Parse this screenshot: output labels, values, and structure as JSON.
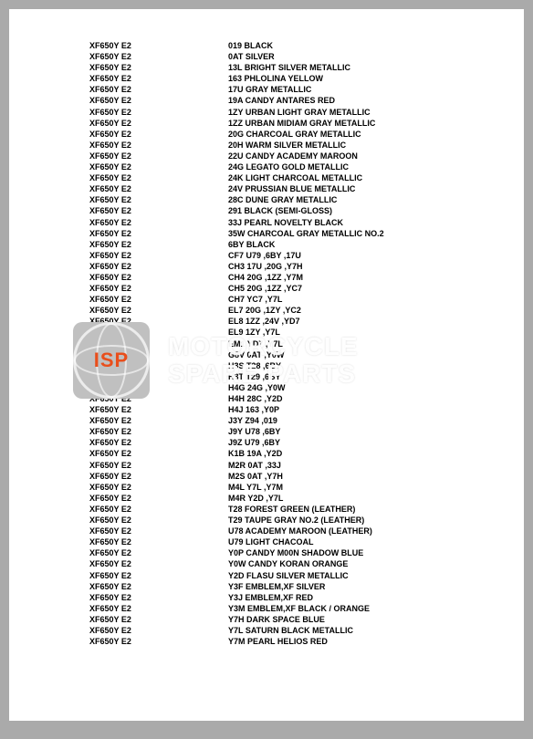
{
  "watermark": {
    "badge": "ISP",
    "line1": "MOTORCYCLE",
    "line2": "SPARE PARTS"
  },
  "rows": [
    {
      "code": "XF650Y E2",
      "desc": "019 BLACK"
    },
    {
      "code": "XF650Y E2",
      "desc": "0AT SILVER"
    },
    {
      "code": "XF650Y E2",
      "desc": "13L BRIGHT SILVER METALLIC"
    },
    {
      "code": "XF650Y E2",
      "desc": "163 PHLOLINA YELLOW"
    },
    {
      "code": "XF650Y E2",
      "desc": "17U GRAY METALLIC"
    },
    {
      "code": "XF650Y E2",
      "desc": "19A CANDY ANTARES RED"
    },
    {
      "code": "XF650Y E2",
      "desc": "1ZY URBAN LIGHT GRAY METALLIC"
    },
    {
      "code": "XF650Y E2",
      "desc": "1ZZ URBAN MIDIAM GRAY METALLIC"
    },
    {
      "code": "XF650Y E2",
      "desc": "20G CHARCOAL GRAY METALLIC"
    },
    {
      "code": "XF650Y E2",
      "desc": "20H WARM SILVER METALLIC"
    },
    {
      "code": "XF650Y E2",
      "desc": "22U CANDY ACADEMY MAROON"
    },
    {
      "code": "XF650Y E2",
      "desc": "24G LEGATO GOLD METALLIC"
    },
    {
      "code": "XF650Y E2",
      "desc": "24K LIGHT CHARCOAL METALLIC"
    },
    {
      "code": "XF650Y E2",
      "desc": "24V PRUSSIAN BLUE METALLIC"
    },
    {
      "code": "XF650Y E2",
      "desc": "28C DUNE GRAY METALLIC"
    },
    {
      "code": "XF650Y E2",
      "desc": "291 BLACK (SEMI-GLOSS)"
    },
    {
      "code": "XF650Y E2",
      "desc": "33J PEARL NOVELTY BLACK"
    },
    {
      "code": "XF650Y E2",
      "desc": "35W CHARCOAL GRAY METALLIC NO.2"
    },
    {
      "code": "XF650Y E2",
      "desc": "6BY BLACK"
    },
    {
      "code": "XF650Y E2",
      "desc": "CF7 U79 ,6BY ,17U"
    },
    {
      "code": "XF650Y E2",
      "desc": "CH3 17U ,20G ,Y7H"
    },
    {
      "code": "XF650Y E2",
      "desc": "CH4 20G ,1ZZ ,Y7M"
    },
    {
      "code": "XF650Y E2",
      "desc": "CH5 20G ,1ZZ ,YC7"
    },
    {
      "code": "XF650Y E2",
      "desc": "CH7 YC7 ,Y7L"
    },
    {
      "code": "XF650Y E2",
      "desc": "EL7 20G ,1ZY ,YC2"
    },
    {
      "code": "XF650Y E2",
      "desc": "EL8 1ZZ ,24V ,YD7"
    },
    {
      "code": "XF650Y E2",
      "desc": "EL9 1ZY ,Y7L"
    },
    {
      "code": "XF650Y E2",
      "desc": "EM1 YD7 ,Y7L"
    },
    {
      "code": "XF650Y E2",
      "desc": "G8V 0AT ,Y0W"
    },
    {
      "code": "XF650Y E2",
      "desc": "H3S T28 ,6BY"
    },
    {
      "code": "XF650Y E2",
      "desc": "H3T T29 ,6BY"
    },
    {
      "code": "XF650Y E2",
      "desc": "H4G 24G ,Y0W"
    },
    {
      "code": "XF650Y E2",
      "desc": "H4H 28C ,Y2D"
    },
    {
      "code": "XF650Y E2",
      "desc": "H4J 163 ,Y0P"
    },
    {
      "code": "XF650Y E2",
      "desc": "J3Y Z94 ,019"
    },
    {
      "code": "XF650Y E2",
      "desc": "J9Y U78 ,6BY"
    },
    {
      "code": "XF650Y E2",
      "desc": "J9Z U79 ,6BY"
    },
    {
      "code": "XF650Y E2",
      "desc": "K1B 19A ,Y2D"
    },
    {
      "code": "XF650Y E2",
      "desc": "M2R 0AT ,33J"
    },
    {
      "code": "XF650Y E2",
      "desc": "M2S 0AT ,Y7H"
    },
    {
      "code": "XF650Y E2",
      "desc": "M4L Y7L ,Y7M"
    },
    {
      "code": "XF650Y E2",
      "desc": "M4R Y2D ,Y7L"
    },
    {
      "code": "XF650Y E2",
      "desc": "T28 FOREST GREEN (LEATHER)"
    },
    {
      "code": "XF650Y E2",
      "desc": "T29 TAUPE GRAY NO.2 (LEATHER)"
    },
    {
      "code": "XF650Y E2",
      "desc": "U78 ACADEMY MAROON (LEATHER)"
    },
    {
      "code": "XF650Y E2",
      "desc": "U79 LIGHT CHACOAL"
    },
    {
      "code": "XF650Y E2",
      "desc": "Y0P CANDY M00N SHADOW BLUE"
    },
    {
      "code": "XF650Y E2",
      "desc": "Y0W CANDY KORAN ORANGE"
    },
    {
      "code": "XF650Y E2",
      "desc": "Y2D FLASU SILVER METALLIC"
    },
    {
      "code": "XF650Y E2",
      "desc": "Y3F EMBLEM,XF SILVER"
    },
    {
      "code": "XF650Y E2",
      "desc": "Y3J EMBLEM,XF RED"
    },
    {
      "code": "XF650Y E2",
      "desc": "Y3M EMBLEM,XF BLACK / ORANGE"
    },
    {
      "code": "XF650Y E2",
      "desc": "Y7H DARK SPACE BLUE"
    },
    {
      "code": "XF650Y E2",
      "desc": "Y7L SATURN BLACK METALLIC"
    },
    {
      "code": "XF650Y E2",
      "desc": "Y7M PEARL HELIOS RED"
    }
  ]
}
